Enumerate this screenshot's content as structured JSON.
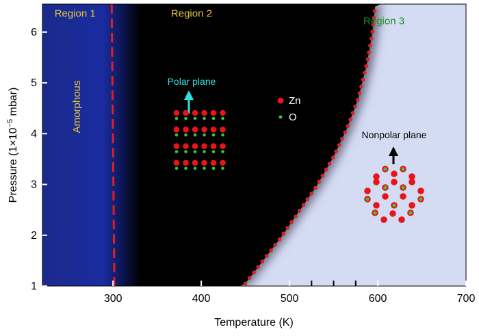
{
  "chart_data": {
    "type": "phase-diagram",
    "xlabel": "Temperature (K)",
    "ylabel_prefix": "Pressure (1×10",
    "ylabel_exp": "−5",
    "ylabel_suffix": " mbar)",
    "xlim": [
      220,
      700
    ],
    "ylim": [
      1,
      6.55
    ],
    "xticks": [
      300,
      400,
      500,
      600,
      700
    ],
    "yticks": [
      1,
      2,
      3,
      4,
      5,
      6
    ],
    "regions": [
      {
        "label": "Region 1",
        "x": 257,
        "y": 6.3,
        "color": "#e6c83c"
      },
      {
        "label": "Region 2",
        "x": 389,
        "y": 6.3,
        "color": "#e6c83c"
      },
      {
        "label": "Region 3",
        "x": 607,
        "y": 6.15,
        "color": "#1e8c2a"
      }
    ],
    "region1_boundary_x": 300,
    "region2_boundary": [
      {
        "x": 450,
        "y": 1.05
      },
      {
        "x": 470,
        "y": 1.5
      },
      {
        "x": 490,
        "y": 1.95
      },
      {
        "x": 510,
        "y": 2.45
      },
      {
        "x": 530,
        "y": 2.95
      },
      {
        "x": 550,
        "y": 3.55
      },
      {
        "x": 565,
        "y": 4.1
      },
      {
        "x": 578,
        "y": 4.7
      },
      {
        "x": 588,
        "y": 5.4
      },
      {
        "x": 594,
        "y": 6.0
      },
      {
        "x": 597,
        "y": 6.5
      }
    ],
    "annotations": {
      "amorphous": "Amorphous",
      "polar_plane": "Polar plane",
      "nonpolar_plane": "Nonpolar plane",
      "legend_zn": "Zn",
      "legend_o": "O"
    },
    "colors": {
      "region1": "#1a2a8a",
      "region2": "#000000",
      "region3": "#d4dcf4",
      "zn": "#e8141a",
      "o": "#34c83a",
      "boundary": "#e02020",
      "polar_arrow": "#2ee0e0"
    }
  }
}
